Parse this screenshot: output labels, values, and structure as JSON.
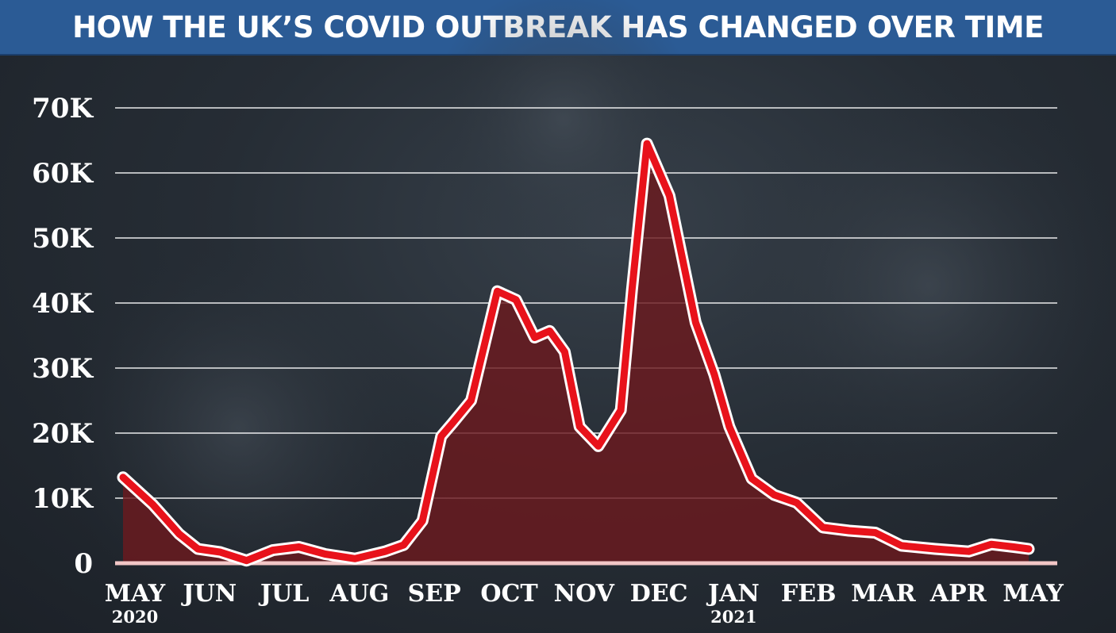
{
  "title": "HOW THE UK’S COVID OUTBREAK HAS CHANGED OVER TIME",
  "colors": {
    "title_bar": "#2b5b95",
    "line": "#e8121b",
    "line_outline": "#ffffff",
    "area_fill": "#6b1a1f",
    "gridline": "#ffffff",
    "baseline": "#f2c6c6"
  },
  "chart_data": {
    "type": "area",
    "title": "HOW THE UK’S COVID OUTBREAK HAS CHANGED OVER TIME",
    "xlabel": "",
    "ylabel": "",
    "ylim": [
      0,
      70000
    ],
    "y_ticks": [
      0,
      10000,
      20000,
      30000,
      40000,
      50000,
      60000,
      70000
    ],
    "y_tick_labels": [
      "0",
      "10K",
      "20K",
      "30K",
      "40K",
      "50K",
      "60K",
      "70K"
    ],
    "x_tick_labels": [
      "MAY",
      "JUN",
      "JUL",
      "AUG",
      "SEP",
      "OCT",
      "NOV",
      "DEC",
      "JAN",
      "FEB",
      "MAR",
      "APR",
      "MAY"
    ],
    "x_sublabels": [
      {
        "tick": 0,
        "text": "2020"
      },
      {
        "tick": 8,
        "text": "2021"
      }
    ],
    "grid": true,
    "x_range_months": [
      0,
      12.2
    ],
    "series": [
      {
        "x": [
          0,
          0.4,
          0.75,
          1.0,
          1.3,
          1.65,
          2.0,
          2.35,
          2.7,
          3.1,
          3.5,
          3.75,
          4.0,
          4.25,
          4.4,
          4.65,
          5.0,
          5.25,
          5.5,
          5.7,
          5.9,
          6.1,
          6.35,
          6.65,
          6.8,
          7.0,
          7.3,
          7.65,
          7.9,
          8.1,
          8.4,
          8.7,
          9.0,
          9.35,
          9.7,
          10.05,
          10.4,
          10.85,
          11.3,
          11.6,
          11.9,
          12.1
        ],
        "values": [
          13200,
          9000,
          4500,
          2200,
          1700,
          400,
          2000,
          2500,
          1400,
          700,
          1800,
          2800,
          6500,
          19500,
          21500,
          25000,
          41800,
          40500,
          34700,
          35700,
          32500,
          21000,
          18000,
          23500,
          42000,
          64500,
          56500,
          37000,
          29000,
          21000,
          13000,
          10500,
          9300,
          5500,
          5000,
          4700,
          2700,
          2200,
          1800,
          2900,
          2500,
          2200
        ]
      }
    ]
  }
}
